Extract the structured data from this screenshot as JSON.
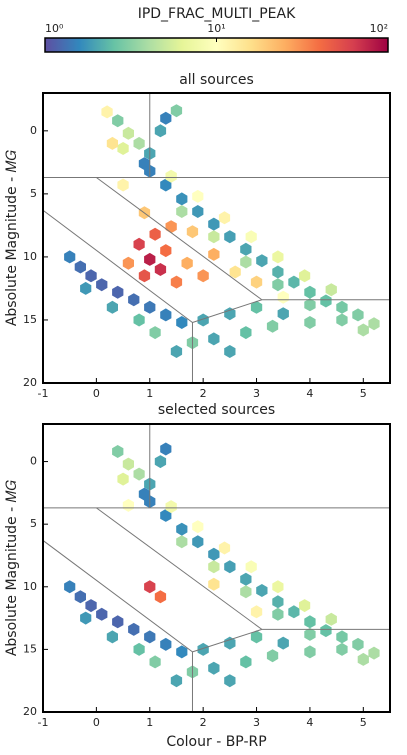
{
  "colorbar": {
    "label": "IPD_FRAC_MULTI_PEAK",
    "scale": "log",
    "lim": [
      1,
      100
    ],
    "ticks": [
      {
        "value": 1,
        "label": "10⁰"
      },
      {
        "value": 10,
        "label": "10¹"
      },
      {
        "value": 100,
        "label": "10²"
      }
    ],
    "colors": [
      "#5e4fa2",
      "#3288bd",
      "#66c2a5",
      "#abdda4",
      "#e6f598",
      "#ffffbf",
      "#fee08b",
      "#fdae61",
      "#f46d43",
      "#d53e4f",
      "#9e0142"
    ]
  },
  "chart_data": [
    {
      "type": "hexbin",
      "title": "all sources",
      "ylabel": "Absolute Magnitude - 𝑀𝐺",
      "xlim": [
        -1,
        5.5
      ],
      "ylim": [
        20,
        -3
      ],
      "xticks": [
        -1,
        0,
        1,
        2,
        3,
        4,
        5
      ],
      "yticks": [
        0,
        5,
        10,
        15,
        20
      ],
      "lines": [
        [
          1,
          -3,
          1,
          3.7
        ],
        [
          -1,
          3.7,
          5.5,
          3.7
        ],
        [
          0,
          3.7,
          3.1,
          13.4
        ],
        [
          3.1,
          13.4,
          5.5,
          13.4
        ],
        [
          -1,
          6.3,
          1.8,
          15.2
        ],
        [
          1.8,
          15.2,
          3.1,
          13.4
        ],
        [
          1.8,
          15.2,
          1.8,
          20
        ]
      ],
      "hexes": [
        [
          0.4,
          -0.8,
          3
        ],
        [
          0.6,
          0.2,
          5
        ],
        [
          0.8,
          1.0,
          4
        ],
        [
          1.2,
          0.0,
          2
        ],
        [
          1.3,
          -1.0,
          1.5
        ],
        [
          1.0,
          1.8,
          2
        ],
        [
          0.9,
          2.6,
          1.5
        ],
        [
          0.5,
          1.4,
          6
        ],
        [
          0.2,
          -1.5,
          12
        ],
        [
          1.5,
          -1.6,
          3
        ],
        [
          1.0,
          3.2,
          1.5
        ],
        [
          1.3,
          4.3,
          1.6
        ],
        [
          1.6,
          5.4,
          1.7
        ],
        [
          1.9,
          6.4,
          1.8
        ],
        [
          2.2,
          7.4,
          1.8
        ],
        [
          2.5,
          8.4,
          1.9
        ],
        [
          2.8,
          9.4,
          2
        ],
        [
          3.1,
          10.3,
          2
        ],
        [
          3.4,
          11.2,
          2.2
        ],
        [
          3.7,
          12.0,
          2.3
        ],
        [
          4.0,
          12.8,
          2.5
        ],
        [
          4.3,
          13.5,
          2.5
        ],
        [
          4.6,
          14.0,
          2.8
        ],
        [
          4.9,
          14.6,
          3
        ],
        [
          5.2,
          15.3,
          4
        ],
        [
          1.4,
          3.6,
          8
        ],
        [
          1.9,
          5.2,
          10
        ],
        [
          2.4,
          6.9,
          12
        ],
        [
          2.9,
          8.4,
          9
        ],
        [
          3.4,
          10.0,
          7
        ],
        [
          3.9,
          11.5,
          6
        ],
        [
          4.4,
          12.6,
          5
        ],
        [
          1.6,
          6.4,
          4
        ],
        [
          2.2,
          8.4,
          5
        ],
        [
          2.8,
          10.4,
          4
        ],
        [
          3.4,
          12.2,
          3
        ],
        [
          4.0,
          13.8,
          3
        ],
        [
          4.6,
          15.0,
          3
        ],
        [
          5.0,
          15.8,
          4
        ],
        [
          1.8,
          8.0,
          20
        ],
        [
          2.2,
          9.8,
          25
        ],
        [
          2.6,
          11.2,
          15
        ],
        [
          3.0,
          12.0,
          18
        ],
        [
          3.5,
          13.2,
          10
        ],
        [
          2.0,
          11.5,
          30
        ],
        [
          0.8,
          9.0,
          60
        ],
        [
          1.0,
          10.2,
          80
        ],
        [
          1.2,
          11.0,
          70
        ],
        [
          0.9,
          11.5,
          50
        ],
        [
          1.3,
          9.5,
          40
        ],
        [
          1.5,
          12.0,
          35
        ],
        [
          1.1,
          8.2,
          45
        ],
        [
          0.6,
          10.5,
          30
        ],
        [
          1.7,
          10.5,
          25
        ],
        [
          0.9,
          6.5,
          20
        ],
        [
          0.5,
          4.3,
          12
        ],
        [
          1.4,
          7.6,
          30
        ],
        [
          0.3,
          1.0,
          15
        ],
        [
          -0.5,
          10.0,
          1.5
        ],
        [
          -0.3,
          10.8,
          1.3
        ],
        [
          -0.1,
          11.5,
          1.2
        ],
        [
          0.1,
          12.2,
          1.2
        ],
        [
          0.4,
          12.8,
          1.2
        ],
        [
          0.7,
          13.4,
          1.3
        ],
        [
          1.0,
          14.0,
          1.4
        ],
        [
          1.3,
          14.6,
          1.5
        ],
        [
          1.6,
          15.2,
          1.6
        ],
        [
          -0.2,
          12.5,
          1.8
        ],
        [
          0.3,
          14.0,
          2
        ],
        [
          0.8,
          15.0,
          2.5
        ],
        [
          1.1,
          16.0,
          3
        ],
        [
          2.0,
          15.0,
          2
        ],
        [
          2.5,
          14.5,
          2
        ],
        [
          3.0,
          14.0,
          2.5
        ],
        [
          3.5,
          14.5,
          2
        ],
        [
          2.2,
          16.5,
          2
        ],
        [
          2.8,
          16.0,
          2.5
        ],
        [
          1.5,
          17.5,
          2
        ],
        [
          1.8,
          16.8,
          3
        ],
        [
          3.3,
          15.5,
          3
        ],
        [
          4.0,
          15.2,
          3
        ],
        [
          2.5,
          17.5,
          2
        ]
      ]
    },
    {
      "type": "hexbin",
      "title": "selected sources",
      "xlabel": "Colour - BP-RP",
      "ylabel": "Absolute Magnitude - 𝑀𝐺",
      "xlim": [
        -1,
        5.5
      ],
      "ylim": [
        20,
        -3
      ],
      "xticks": [
        -1,
        0,
        1,
        2,
        3,
        4,
        5
      ],
      "yticks": [
        0,
        5,
        10,
        15,
        20
      ],
      "lines": [
        [
          1,
          -3,
          1,
          3.7
        ],
        [
          -1,
          3.7,
          5.5,
          3.7
        ],
        [
          0,
          3.7,
          3.1,
          13.4
        ],
        [
          3.1,
          13.4,
          5.5,
          13.4
        ],
        [
          -1,
          6.3,
          1.8,
          15.2
        ],
        [
          1.8,
          15.2,
          3.1,
          13.4
        ],
        [
          1.8,
          15.2,
          1.8,
          20
        ]
      ],
      "hexes": [
        [
          0.4,
          -0.8,
          3
        ],
        [
          0.6,
          0.2,
          5
        ],
        [
          0.8,
          1.0,
          4
        ],
        [
          1.2,
          0.0,
          2
        ],
        [
          1.3,
          -1.0,
          1.5
        ],
        [
          1.0,
          1.8,
          2
        ],
        [
          0.9,
          2.6,
          1.5
        ],
        [
          0.5,
          1.4,
          6
        ],
        [
          1.0,
          3.2,
          1.5
        ],
        [
          1.3,
          4.3,
          1.6
        ],
        [
          1.6,
          5.4,
          1.7
        ],
        [
          1.9,
          6.4,
          1.8
        ],
        [
          2.2,
          7.4,
          1.8
        ],
        [
          2.5,
          8.4,
          1.9
        ],
        [
          2.8,
          9.4,
          2
        ],
        [
          3.1,
          10.3,
          2
        ],
        [
          3.4,
          11.2,
          2.2
        ],
        [
          3.7,
          12.0,
          2.3
        ],
        [
          4.0,
          12.8,
          2.5
        ],
        [
          4.3,
          13.5,
          2.5
        ],
        [
          4.6,
          14.0,
          2.8
        ],
        [
          4.9,
          14.6,
          3
        ],
        [
          5.2,
          15.3,
          4
        ],
        [
          1.4,
          3.6,
          8
        ],
        [
          1.9,
          5.2,
          10
        ],
        [
          2.4,
          6.9,
          12
        ],
        [
          2.9,
          8.4,
          9
        ],
        [
          3.4,
          10.0,
          7
        ],
        [
          3.9,
          11.5,
          6
        ],
        [
          4.4,
          12.6,
          5
        ],
        [
          1.6,
          6.4,
          4
        ],
        [
          2.2,
          8.4,
          5
        ],
        [
          2.8,
          10.4,
          4
        ],
        [
          3.4,
          12.2,
          3
        ],
        [
          4.0,
          13.8,
          3
        ],
        [
          4.6,
          15.0,
          3
        ],
        [
          5.0,
          15.8,
          4
        ],
        [
          2.2,
          9.8,
          15
        ],
        [
          3.0,
          12.0,
          12
        ],
        [
          1.0,
          10.0,
          60
        ],
        [
          1.2,
          10.8,
          40
        ],
        [
          0.6,
          3.5,
          10
        ],
        [
          -0.5,
          10.0,
          1.5
        ],
        [
          -0.3,
          10.8,
          1.3
        ],
        [
          -0.1,
          11.5,
          1.2
        ],
        [
          0.1,
          12.2,
          1.2
        ],
        [
          0.4,
          12.8,
          1.2
        ],
        [
          0.7,
          13.4,
          1.3
        ],
        [
          1.0,
          14.0,
          1.4
        ],
        [
          1.3,
          14.6,
          1.5
        ],
        [
          1.6,
          15.2,
          1.6
        ],
        [
          -0.2,
          12.5,
          1.8
        ],
        [
          0.3,
          14.0,
          2
        ],
        [
          0.8,
          15.0,
          2.5
        ],
        [
          1.1,
          16.0,
          3
        ],
        [
          2.0,
          15.0,
          2
        ],
        [
          2.5,
          14.5,
          2
        ],
        [
          3.0,
          14.0,
          2.5
        ],
        [
          3.5,
          14.5,
          2
        ],
        [
          2.2,
          16.5,
          2
        ],
        [
          2.8,
          16.0,
          2.5
        ],
        [
          1.5,
          17.5,
          2
        ],
        [
          1.8,
          16.8,
          3
        ],
        [
          3.3,
          15.5,
          3
        ],
        [
          4.0,
          15.2,
          3
        ],
        [
          2.5,
          17.5,
          2
        ]
      ]
    }
  ]
}
